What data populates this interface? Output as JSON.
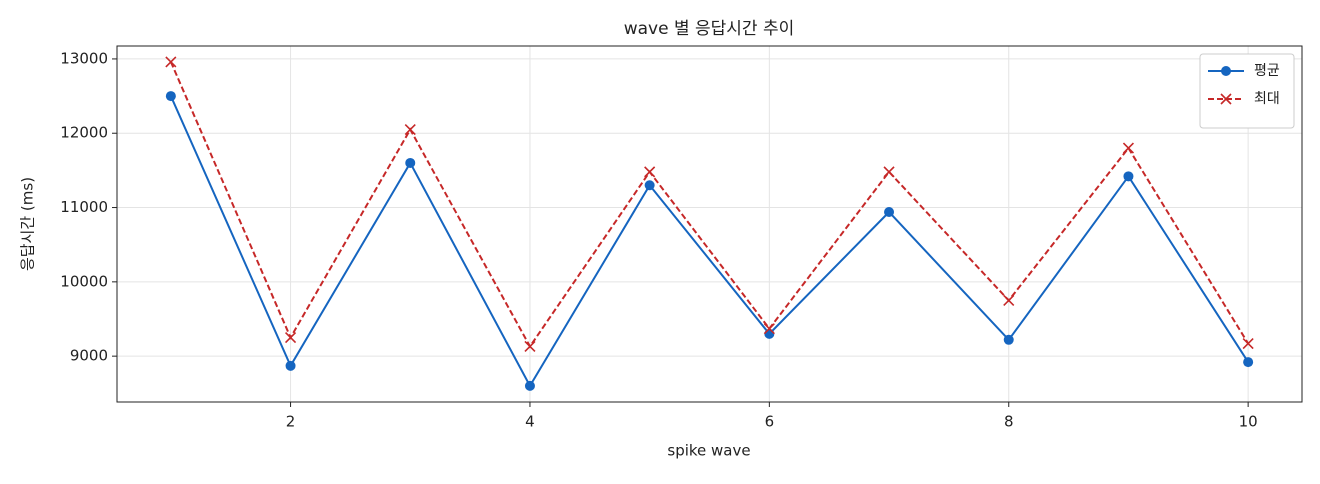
{
  "chart_data": {
    "type": "line",
    "title": "wave 별 응답시간 추이",
    "xlabel": "spike wave",
    "ylabel": "응답시간 (ms)",
    "x": [
      1,
      2,
      3,
      4,
      5,
      6,
      7,
      8,
      9,
      10
    ],
    "series": [
      {
        "name": "평균",
        "color": "#1565c0",
        "marker": "o",
        "linestyle": "solid",
        "values": [
          12500,
          8870,
          11600,
          8600,
          11300,
          9300,
          10940,
          9220,
          11420,
          8920
        ]
      },
      {
        "name": "최대",
        "color": "#c62828",
        "marker": "x",
        "linestyle": "dashed",
        "values": [
          12960,
          9250,
          12050,
          9130,
          11480,
          9370,
          11480,
          9750,
          11800,
          9170
        ]
      }
    ],
    "xlim": [
      0.55,
      10.45
    ],
    "xticks": [
      2,
      4,
      6,
      8,
      10
    ],
    "ylim": [
      8383,
      13174
    ],
    "yticks": [
      9000,
      10000,
      11000,
      12000,
      13000
    ],
    "grid": true,
    "legend": "upper right"
  }
}
